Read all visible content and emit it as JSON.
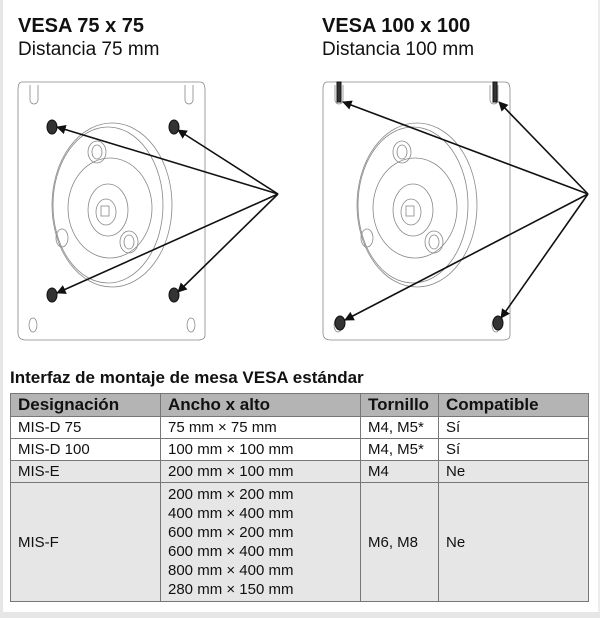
{
  "diagrams": [
    {
      "title": "VESA 75 x 75",
      "subtitle": "Distancia 75 mm"
    },
    {
      "title": "VESA 100 x 100",
      "subtitle": "Distancia 100 mm"
    }
  ],
  "table": {
    "caption": "Interfaz de montaje de mesa VESA estándar",
    "headers": [
      "Designación",
      "Ancho x alto",
      "Tornillo",
      "Compatible"
    ],
    "rows": [
      {
        "designation": "MIS-D 75",
        "sizes": [
          "75 mm × 75 mm"
        ],
        "screw": "M4, M5*",
        "compatible": "Sí"
      },
      {
        "designation": "MIS-D 100",
        "sizes": [
          "100 mm × 100 mm"
        ],
        "screw": "M4, M5*",
        "compatible": "Sí"
      },
      {
        "designation": "MIS-E",
        "sizes": [
          "200 mm × 100 mm"
        ],
        "screw": "M4",
        "compatible": "Ne"
      },
      {
        "designation": "MIS-F",
        "sizes": [
          "200 mm × 200 mm",
          "400 mm × 400 mm",
          "600 mm × 200 mm",
          "600 mm × 400 mm",
          "800 mm × 400 mm",
          "280 mm × 150 mm"
        ],
        "screw": "M6, M8",
        "compatible": "Ne"
      }
    ]
  },
  "colors": {
    "header_bg": "#b4b4b4",
    "shaded_row": "#e6e6e6"
  }
}
